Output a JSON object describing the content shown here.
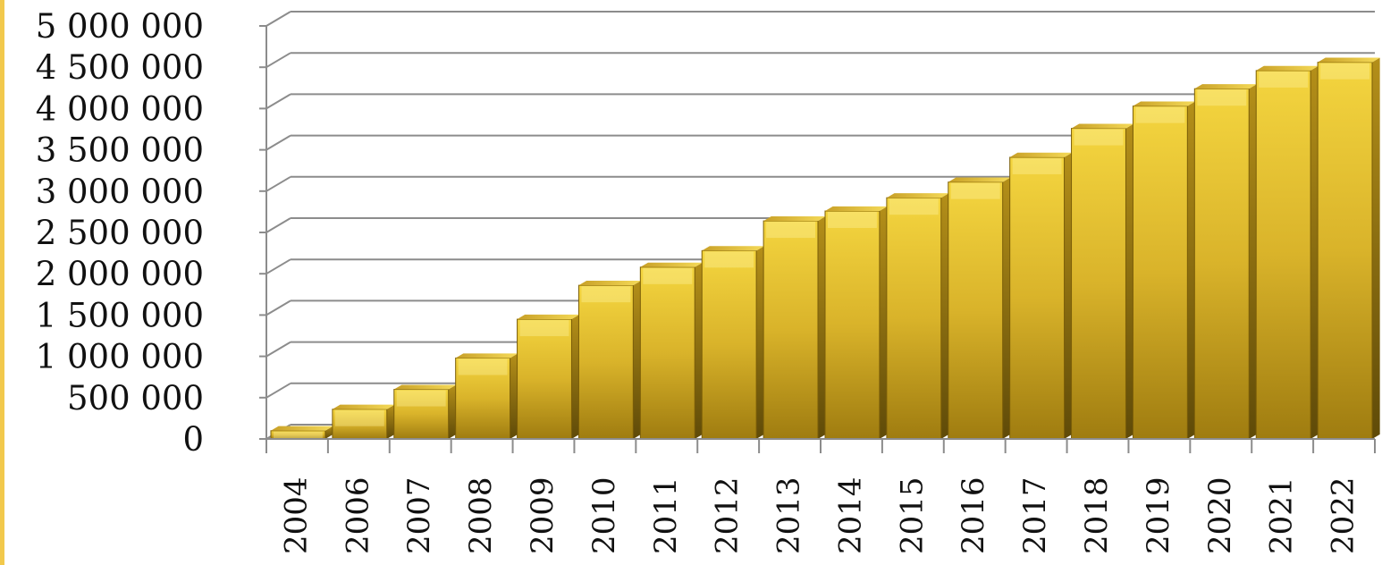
{
  "chart_data": {
    "type": "bar",
    "title": "",
    "xlabel": "",
    "ylabel": "",
    "categories": [
      "2004",
      "2006",
      "2007",
      "2008",
      "2009",
      "2010",
      "2011",
      "2012",
      "2013",
      "2014",
      "2015",
      "2016",
      "2017",
      "2018",
      "2019",
      "2020",
      "2021",
      "2022"
    ],
    "values": [
      100000,
      360000,
      600000,
      980000,
      1450000,
      1860000,
      2080000,
      2280000,
      2640000,
      2760000,
      2920000,
      3110000,
      3410000,
      3760000,
      4030000,
      4240000,
      4460000,
      4560000
    ],
    "ylim": [
      0,
      5000000
    ],
    "yticks": [
      0,
      500000,
      1000000,
      1500000,
      2000000,
      2500000,
      3000000,
      3500000,
      4000000,
      4500000,
      5000000
    ],
    "ytick_labels": [
      "0",
      "500 000",
      "1 000 000",
      "1 500 000",
      "2 000 000",
      "2 500 000",
      "3 000 000",
      "3 500 000",
      "4 000 000",
      "4 500 000",
      "5 000 000"
    ],
    "grid": true,
    "legend": "none",
    "style": "3d",
    "colors": {
      "bar": "#e8c22a",
      "bar_top": "#f7de63",
      "bar_side": "#9c7b12",
      "grid": "#8c8c8c",
      "accent": "#f2c94c"
    }
  }
}
